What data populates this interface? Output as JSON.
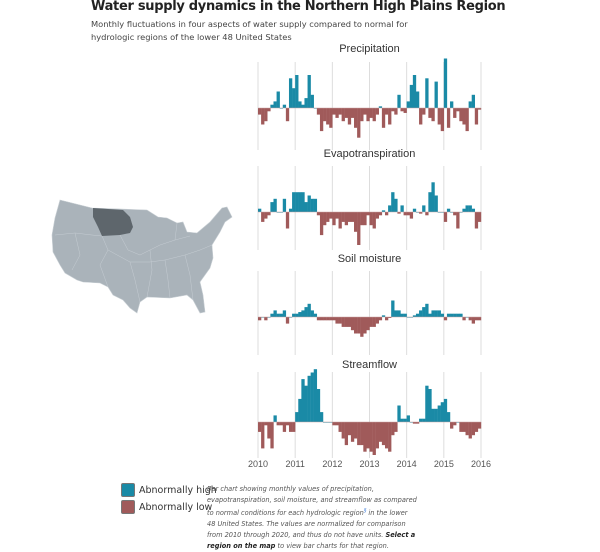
{
  "header": {
    "title": "Water supply dynamics in the Northern High Plains Region",
    "subtitle": "Monthly fluctuations in four aspects of water supply compared to normal for hydrologic regions of the lower 48 United States"
  },
  "map": {
    "highlighted_region": "Northern High Plains",
    "region_color": "#5e666c",
    "land_color": "#aab3ba"
  },
  "legend": [
    {
      "label": "Abnormally high",
      "color": "#1a8aa6"
    },
    {
      "label": "Abnormally low",
      "color": "#a05a5a"
    }
  ],
  "caption": {
    "text1": "Bar chart showing monthly values of precipitation, evapotranspiration, soil moisture, and streamflow as compared to normal conditions for each hydrologic region",
    "footnote": "§",
    "text2": " in the lower 48 United States. The values are normalized for comparison from 2010 through 2020, and thus do not have units. ",
    "bold": "Select a region on the map",
    "text3": " to view bar charts for that region."
  },
  "chart_data": [
    {
      "type": "bar",
      "title": "Precipitation",
      "x_start": "2010-01",
      "frequency": "monthly",
      "x_ticks": [
        "2010",
        "2011",
        "2012",
        "2013",
        "2014",
        "2015",
        "2016"
      ],
      "grid": true,
      "values": [
        -2,
        -5,
        -4,
        -1,
        1,
        2,
        5,
        0,
        1,
        -4,
        9,
        6,
        10,
        2,
        1,
        3,
        10,
        4,
        0,
        -2,
        -7,
        -4,
        -5,
        -6,
        -2,
        -3,
        -2,
        -4,
        -3,
        -5,
        -3,
        -6,
        -9,
        -4,
        -2,
        -4,
        -3,
        -4,
        -2,
        0.5,
        -6,
        -2,
        -5,
        -1,
        -2,
        4,
        -1,
        -1.5,
        2,
        7,
        10,
        5,
        -5,
        -2,
        9,
        -3,
        -4,
        8,
        -5,
        -7,
        15,
        -6,
        2,
        -3,
        -1,
        -4,
        -5,
        -7,
        2,
        4,
        -5,
        -0.5
      ]
    },
    {
      "type": "bar",
      "title": "Evapotranspiration",
      "x_start": "2010-01",
      "frequency": "monthly",
      "x_ticks": [
        "2010",
        "2011",
        "2012",
        "2013",
        "2014",
        "2015",
        "2016"
      ],
      "grid": true,
      "values": [
        1,
        -3,
        -2,
        -1,
        3,
        4,
        0,
        0,
        4,
        -5,
        1,
        6,
        6,
        6,
        6,
        3,
        5,
        4,
        4,
        -1,
        -7,
        -4,
        -3,
        -2,
        -4,
        -2,
        -5,
        -3,
        -4,
        -3,
        -3,
        -6,
        -10,
        -4,
        -4,
        -1,
        -4,
        -5,
        -2,
        -1,
        0.5,
        -1,
        2,
        6,
        4,
        -0.5,
        2,
        -1,
        -1,
        -2,
        1,
        0,
        -0.5,
        2,
        -1,
        6,
        9,
        5,
        0,
        0,
        -3,
        1,
        0,
        -1,
        -5,
        0,
        1,
        2,
        2,
        1,
        -5,
        -3
      ]
    },
    {
      "type": "bar",
      "title": "Soil moisture",
      "x_start": "2010-01",
      "frequency": "monthly",
      "x_ticks": [
        "2010",
        "2011",
        "2012",
        "2013",
        "2014",
        "2015",
        "2016"
      ],
      "grid": true,
      "values": [
        -1,
        0,
        -1,
        0,
        1,
        2,
        1,
        1,
        2,
        -2,
        0,
        1,
        1,
        1.5,
        2,
        3,
        4,
        2,
        1,
        -1,
        -1,
        -1,
        -1,
        -1,
        -1,
        -2,
        -2,
        -3,
        -3,
        -3,
        -4,
        -5,
        -5,
        -6,
        -5,
        -4,
        -3,
        -3,
        -2,
        -1,
        0.5,
        -1,
        -0.3,
        5,
        2,
        2,
        1,
        1,
        0,
        0,
        0.5,
        1,
        2,
        3,
        4,
        1,
        2,
        2,
        2,
        1,
        -1,
        1,
        1,
        1,
        1,
        1,
        -1,
        0,
        -1,
        -2,
        -1,
        -1
      ]
    },
    {
      "type": "bar",
      "title": "Streamflow",
      "x_start": "2010-01",
      "frequency": "monthly",
      "x_ticks": [
        "2010",
        "2011",
        "2012",
        "2013",
        "2014",
        "2015",
        "2016"
      ],
      "grid": true,
      "values": [
        -3,
        -8,
        -1,
        -5,
        -8,
        2,
        -1,
        -1,
        -3,
        -1,
        -3,
        -3,
        3,
        7,
        13,
        11,
        14,
        15,
        16,
        10,
        3,
        0,
        0,
        0,
        -1,
        -1,
        -3,
        -5,
        -7,
        -4,
        -6,
        -5,
        -7,
        -7,
        -9,
        -8,
        -9,
        -10,
        -8,
        -6,
        -7,
        -8,
        -9,
        -4,
        -3,
        5,
        1,
        1,
        2,
        0,
        -0.5,
        -0.5,
        1,
        1,
        11,
        10,
        4,
        4,
        5,
        6,
        7,
        3,
        -2,
        -1,
        0,
        -3,
        -3,
        -4,
        -5,
        -4,
        -3,
        -2
      ]
    }
  ]
}
